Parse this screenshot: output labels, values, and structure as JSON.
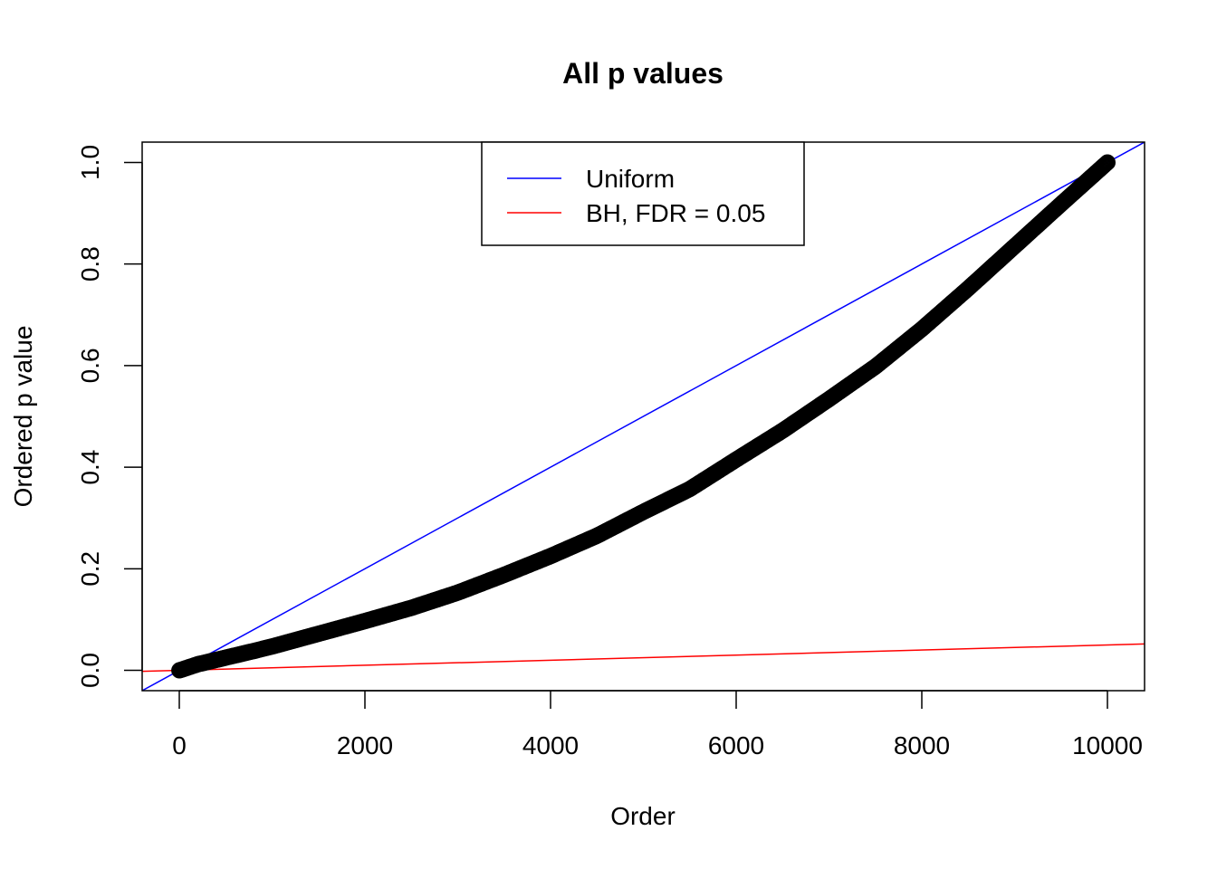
{
  "chart_data": {
    "type": "scatter",
    "title": "All p values",
    "xlabel": "Order",
    "ylabel": "Ordered p value",
    "xlim": [
      -400,
      10400
    ],
    "ylim": [
      -0.04,
      1.04
    ],
    "xticks": [
      0,
      2000,
      4000,
      6000,
      8000,
      10000
    ],
    "yticks": [
      0.0,
      0.2,
      0.4,
      0.6,
      0.8,
      1.0
    ],
    "ytick_labels": [
      "0.0",
      "0.2",
      "0.4",
      "0.6",
      "0.8",
      "1.0"
    ],
    "grid": false,
    "legend_position": "top-center",
    "legend": [
      {
        "label": "Uniform",
        "color": "#0000ff"
      },
      {
        "label": "BH, FDR = 0.05",
        "color": "#ff0000"
      }
    ],
    "series": [
      {
        "color": "#000000",
        "marker": "circle",
        "x": [
          1,
          200,
          500,
          800,
          1000,
          1500,
          2000,
          2500,
          3000,
          3500,
          4000,
          4500,
          5000,
          5500,
          6000,
          6500,
          7000,
          7500,
          8000,
          8500,
          9000,
          9500,
          10000
        ],
        "y": [
          0.0,
          0.012,
          0.025,
          0.038,
          0.047,
          0.072,
          0.097,
          0.123,
          0.153,
          0.188,
          0.225,
          0.265,
          0.312,
          0.357,
          0.415,
          0.472,
          0.534,
          0.598,
          0.672,
          0.752,
          0.835,
          0.918,
          1.0
        ]
      }
    ],
    "lines": [
      {
        "name": "Uniform",
        "color": "#0000ff",
        "intercept": 0,
        "slope": 0.0001
      },
      {
        "name": "BH, FDR = 0.05",
        "color": "#ff0000",
        "intercept": 0,
        "slope": 5e-06
      }
    ]
  }
}
